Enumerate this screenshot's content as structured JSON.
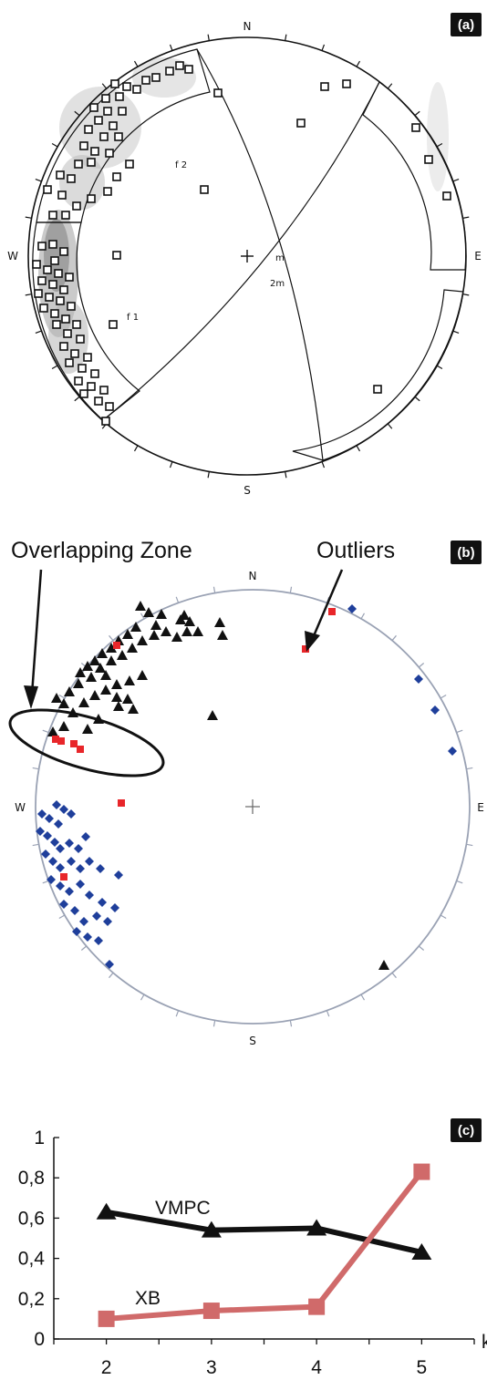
{
  "colors": {
    "cluster_a": "#1f3f9b",
    "cluster_b": "#111111",
    "outlier": "#e8262a",
    "vmpc": "#111111",
    "xb": "#d06a6a",
    "net_rim": "#9aa2b4",
    "density": "#bdbdbd"
  },
  "panel_a": {
    "label": "(a)",
    "compass": {
      "n": "N",
      "e": "E",
      "s": "S",
      "w": "W"
    },
    "annotations": [
      "f 2",
      "f 1",
      "m",
      "2m"
    ],
    "point_marker": "open-square"
  },
  "panel_b": {
    "label": "(b)",
    "compass": {
      "n": "N",
      "e": "E",
      "s": "S",
      "w": "W"
    },
    "callouts": {
      "overlap": "Overlapping Zone",
      "outliers": "Outliers"
    },
    "markers": {
      "cluster_a": "diamond",
      "cluster_b": "triangle",
      "outlier": "square"
    }
  },
  "chart_data": {
    "type": "line",
    "panel_label": "(c)",
    "xlabel": "k",
    "ylabel": "",
    "x": [
      2,
      3,
      4,
      5
    ],
    "xlim": [
      1.5,
      5.5
    ],
    "ylim": [
      0,
      1
    ],
    "yticks": [
      "0",
      "0,2",
      "0,4",
      "0,6",
      "0,8",
      "1"
    ],
    "xticks": [
      "2",
      "3",
      "4",
      "5"
    ],
    "series": [
      {
        "name": "VMPC",
        "values": [
          0.63,
          0.54,
          0.55,
          0.43
        ],
        "marker": "triangle",
        "color": "#111111"
      },
      {
        "name": "XB",
        "values": [
          0.1,
          0.14,
          0.16,
          0.83
        ],
        "marker": "square",
        "color": "#d06a6a"
      }
    ],
    "grid": false,
    "legend": "inline labels"
  }
}
